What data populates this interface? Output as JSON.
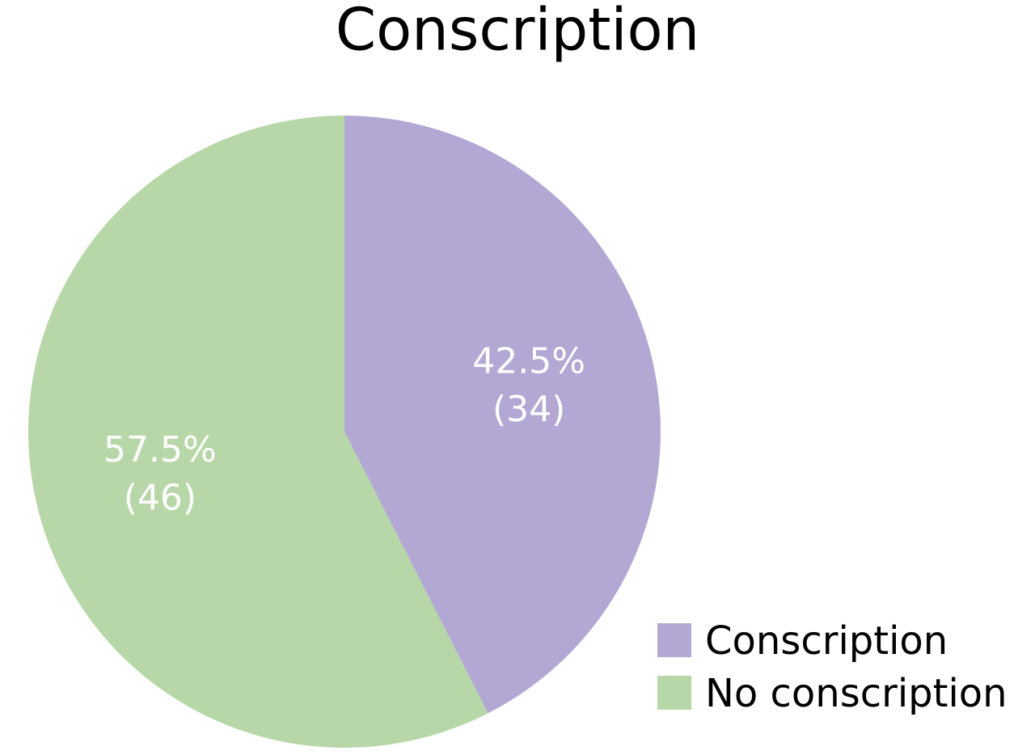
{
  "chart_data": {
    "type": "pie",
    "title": "Conscription",
    "categories": [
      "Conscription",
      "No conscription"
    ],
    "values": [
      34,
      46
    ],
    "value_labels": [
      "42.5%\n(34)",
      "57.5%\n(46)"
    ],
    "colors": [
      "#b3a7d4",
      "#b7d7a8"
    ],
    "legend": "lower right"
  }
}
